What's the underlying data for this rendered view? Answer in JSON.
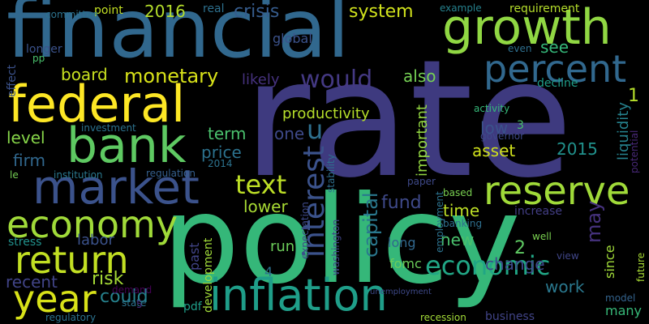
{
  "words": [
    {
      "id": "rate",
      "text": "rate",
      "color": "#3e3a7f"
    },
    {
      "id": "policy",
      "text": "policy",
      "color": "#35b779"
    },
    {
      "id": "financial",
      "text": "financial",
      "color": "#31688e"
    },
    {
      "id": "federal",
      "text": "federal",
      "color": "#fde725"
    },
    {
      "id": "growth",
      "text": "growth",
      "color": "#90d743"
    },
    {
      "id": "bank",
      "text": "bank",
      "color": "#5ec962"
    },
    {
      "id": "market",
      "text": "market",
      "color": "#3b528b"
    },
    {
      "id": "inflation",
      "text": "inflation",
      "color": "#1f9e89"
    },
    {
      "id": "reserve",
      "text": "reserve",
      "color": "#a0da39"
    },
    {
      "id": "percent",
      "text": "percent",
      "color": "#31688e"
    },
    {
      "id": "economy",
      "text": "economy",
      "color": "#a0da39"
    },
    {
      "id": "return",
      "text": "return",
      "color": "#c2df23"
    },
    {
      "id": "year",
      "text": "year",
      "color": "#d8e219"
    },
    {
      "id": "economic",
      "text": "economic",
      "color": "#21a685"
    },
    {
      "id": "interest",
      "text": "interest",
      "color": "#3b528b"
    },
    {
      "id": "would",
      "text": "would",
      "color": "#443983"
    },
    {
      "id": "text",
      "text": "text",
      "color": "#bddf26"
    },
    {
      "id": "monetary",
      "text": "monetary",
      "color": "#d8e219"
    },
    {
      "id": "board",
      "text": "board",
      "color": "#c8e020"
    },
    {
      "id": "2016",
      "text": "2016",
      "color": "#b5de2b"
    },
    {
      "id": "crisis",
      "text": "crisis",
      "color": "#365c8d"
    },
    {
      "id": "system",
      "text": "system",
      "color": "#d0e11c"
    },
    {
      "id": "see",
      "text": "see",
      "color": "#35b779"
    },
    {
      "id": "also",
      "text": "also",
      "color": "#75d054"
    },
    {
      "id": "u",
      "text": "u",
      "color": "#2e6f8e"
    },
    {
      "id": "one",
      "text": "one",
      "color": "#3e4989"
    },
    {
      "id": "capital",
      "text": "capital",
      "color": "#2a788e"
    },
    {
      "id": "fund",
      "text": "fund",
      "color": "#3e4989"
    },
    {
      "id": "may",
      "text": "may",
      "color": "#46327e"
    },
    {
      "id": "new",
      "text": "new",
      "color": "#4ac16d"
    },
    {
      "id": "time",
      "text": "time",
      "color": "#bddf26"
    },
    {
      "id": "lower",
      "text": "lower",
      "color": "#a8db34"
    },
    {
      "id": "run",
      "text": "run",
      "color": "#6ccd5a"
    },
    {
      "id": "risk",
      "text": "risk",
      "color": "#a5db36"
    },
    {
      "id": "recent",
      "text": "recent",
      "color": "#414487"
    },
    {
      "id": "could",
      "text": "could",
      "color": "#26828e"
    },
    {
      "id": "labor",
      "text": "labor",
      "color": "#3b528b"
    },
    {
      "id": "change",
      "text": "change",
      "color": "#3e4989"
    },
    {
      "id": "work",
      "text": "work",
      "color": "#2a788e"
    },
    {
      "id": "2",
      "text": "2",
      "color": "#5ec962"
    },
    {
      "id": "price",
      "text": "price",
      "color": "#2c728e"
    },
    {
      "id": "term",
      "text": "term",
      "color": "#4ac16d"
    },
    {
      "id": "level",
      "text": "level",
      "color": "#86d549"
    },
    {
      "id": "firm",
      "text": "firm",
      "color": "#31688e"
    },
    {
      "id": "productivity",
      "text": "productivity",
      "color": "#b5de2b"
    },
    {
      "id": "low",
      "text": "low",
      "color": "#3b528b"
    },
    {
      "id": "3",
      "text": "3",
      "color": "#4ac16d"
    },
    {
      "id": "asset",
      "text": "asset",
      "color": "#d0e11c"
    },
    {
      "id": "2015",
      "text": "2015",
      "color": "#21918c"
    },
    {
      "id": "1",
      "text": "1",
      "color": "#b5de2b"
    },
    {
      "id": "liquidity",
      "text": "liquidity",
      "color": "#26828e"
    },
    {
      "id": "important",
      "text": "important",
      "color": "#93d741"
    },
    {
      "id": "likely",
      "text": "likely",
      "color": "#46327e"
    },
    {
      "id": "global",
      "text": "global",
      "color": "#3b528b"
    },
    {
      "id": "real",
      "text": "real",
      "color": "#2d708e"
    },
    {
      "id": "point",
      "text": "point",
      "color": "#c2df23"
    },
    {
      "id": "committee",
      "text": "committee",
      "color": "#2c728e"
    },
    {
      "id": "longer",
      "text": "longer",
      "color": "#3b528b"
    },
    {
      "id": "pp",
      "text": "pp",
      "color": "#4ac16d"
    },
    {
      "id": "effect",
      "text": "effect",
      "color": "#3b528b"
    },
    {
      "id": "example",
      "text": "example",
      "color": "#26828e"
    },
    {
      "id": "requirement",
      "text": "requirement",
      "color": "#b5de2b"
    },
    {
      "id": "even",
      "text": "even",
      "color": "#2e6f8e"
    },
    {
      "id": "decline",
      "text": "decline",
      "color": "#1f9e89"
    },
    {
      "id": "activity",
      "text": "activity",
      "color": "#35b779"
    },
    {
      "id": "governor",
      "text": "governor",
      "color": "#3e4989"
    },
    {
      "id": "potential",
      "text": "potential",
      "color": "#482878"
    },
    {
      "id": "investment",
      "text": "investment",
      "color": "#2c728e"
    },
    {
      "id": "le",
      "text": "le",
      "color": "#75d054"
    },
    {
      "id": "institution",
      "text": "institution",
      "color": "#2a788e"
    },
    {
      "id": "regulation",
      "text": "regulation",
      "color": "#355f8d"
    },
    {
      "id": "2014",
      "text": "2014",
      "color": "#2c728e"
    },
    {
      "id": "stability",
      "text": "stability",
      "color": "#2e6f8e"
    },
    {
      "id": "paper",
      "text": "paper",
      "color": "#3e4989"
    },
    {
      "id": "employment",
      "text": "employment",
      "color": "#2c728e"
    },
    {
      "id": "based",
      "text": "based",
      "color": "#7ad151"
    },
    {
      "id": "banking",
      "text": "banking",
      "color": "#2e6f8e"
    },
    {
      "id": "increase",
      "text": "increase",
      "color": "#433e85"
    },
    {
      "id": "expectation",
      "text": "expectation",
      "color": "#3e4989"
    },
    {
      "id": "washington",
      "text": "washington",
      "color": "#404688"
    },
    {
      "id": "well",
      "text": "well",
      "color": "#7ad151"
    },
    {
      "id": "view",
      "text": "view",
      "color": "#404688"
    },
    {
      "id": "since",
      "text": "since",
      "color": "#a0da39"
    },
    {
      "id": "future",
      "text": "future",
      "color": "#a8db34"
    },
    {
      "id": "model",
      "text": "model",
      "color": "#33638d"
    },
    {
      "id": "many",
      "text": "many",
      "color": "#37b878"
    },
    {
      "id": "business",
      "text": "business",
      "color": "#414487"
    },
    {
      "id": "recession",
      "text": "recession",
      "color": "#a2da37"
    },
    {
      "id": "unemployment",
      "text": "unemployment",
      "color": "#3e4989"
    },
    {
      "id": "past",
      "text": "past",
      "color": "#414487"
    },
    {
      "id": "development",
      "text": "development",
      "color": "#a0da39"
    },
    {
      "id": "4",
      "text": "4",
      "color": "#2c728e"
    },
    {
      "id": "pdf",
      "text": "pdf",
      "color": "#1f9e89"
    },
    {
      "id": "demand",
      "text": "demand",
      "color": "#440154"
    },
    {
      "id": "state",
      "text": "state",
      "color": "#2c728e"
    },
    {
      "id": "5",
      "text": "5",
      "color": "#482878"
    },
    {
      "id": "stress",
      "text": "stress",
      "color": "#21918c"
    },
    {
      "id": "long",
      "text": "long",
      "color": "#31688e"
    },
    {
      "id": "fomc",
      "text": "fomc",
      "color": "#6ccd5a"
    },
    {
      "id": "regulatory",
      "text": "regulatory",
      "color": "#2c728e"
    }
  ]
}
